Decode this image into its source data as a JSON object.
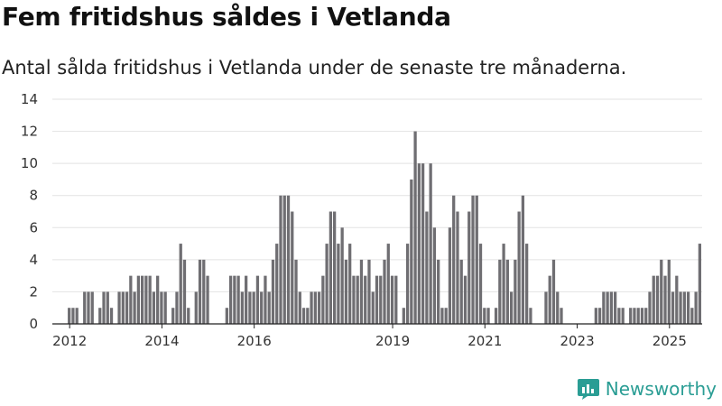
{
  "title": "Fem fritidshus såldes i Vetlanda",
  "subtitle": "Antal sålda fritidshus i Vetlanda under de senaste tre månaderna.",
  "brand": {
    "name": "Newsworthy"
  },
  "colors": {
    "bar": "#6f6e72",
    "highlight": "#1a9e98",
    "grid": "#e2e2e2",
    "axis": "#222222"
  },
  "chart_data": {
    "type": "bar",
    "title": "Fem fritidshus såldes i Vetlanda",
    "subtitle": "Antal sålda fritidshus i Vetlanda under de senaste tre månaderna.",
    "xlabel": "",
    "ylabel": "",
    "ylim": [
      0,
      14
    ],
    "yticks": [
      0,
      2,
      4,
      6,
      8,
      10,
      12,
      14
    ],
    "xticks": [
      {
        "label": "2012",
        "index": 4
      },
      {
        "label": "2014",
        "index": 28
      },
      {
        "label": "2016",
        "index": 52
      },
      {
        "label": "2019",
        "index": 88
      },
      {
        "label": "2021",
        "index": 112
      },
      {
        "label": "2023",
        "index": 136
      },
      {
        "label": "2025",
        "index": 160
      }
    ],
    "grid": true,
    "x_start": "2011-09",
    "x_frequency": "month",
    "values": [
      0,
      0,
      0,
      0,
      1,
      1,
      1,
      0,
      2,
      2,
      2,
      0,
      1,
      2,
      2,
      1,
      0,
      2,
      2,
      2,
      3,
      2,
      3,
      3,
      3,
      3,
      2,
      3,
      2,
      2,
      0,
      1,
      2,
      5,
      4,
      1,
      0,
      2,
      4,
      4,
      3,
      0,
      0,
      0,
      0,
      1,
      3,
      3,
      3,
      2,
      3,
      2,
      2,
      3,
      2,
      3,
      2,
      4,
      5,
      8,
      8,
      8,
      7,
      4,
      2,
      1,
      1,
      2,
      2,
      2,
      3,
      5,
      7,
      7,
      5,
      6,
      4,
      5,
      3,
      3,
      4,
      3,
      4,
      2,
      3,
      3,
      4,
      5,
      3,
      3,
      0,
      1,
      5,
      9,
      12,
      10,
      10,
      7,
      10,
      6,
      4,
      1,
      1,
      6,
      8,
      7,
      4,
      3,
      7,
      8,
      8,
      5,
      1,
      1,
      0,
      1,
      4,
      5,
      4,
      2,
      4,
      7,
      8,
      5,
      1,
      0,
      0,
      0,
      2,
      3,
      4,
      2,
      1,
      0,
      0,
      0,
      0,
      0,
      0,
      0,
      0,
      1,
      1,
      2,
      2,
      2,
      2,
      1,
      1,
      0,
      1,
      1,
      1,
      1,
      1,
      2,
      3,
      3,
      4,
      3,
      4,
      2,
      3,
      2,
      2,
      2,
      1,
      2,
      5
    ],
    "highlight_index": 170,
    "annotation": "5"
  }
}
